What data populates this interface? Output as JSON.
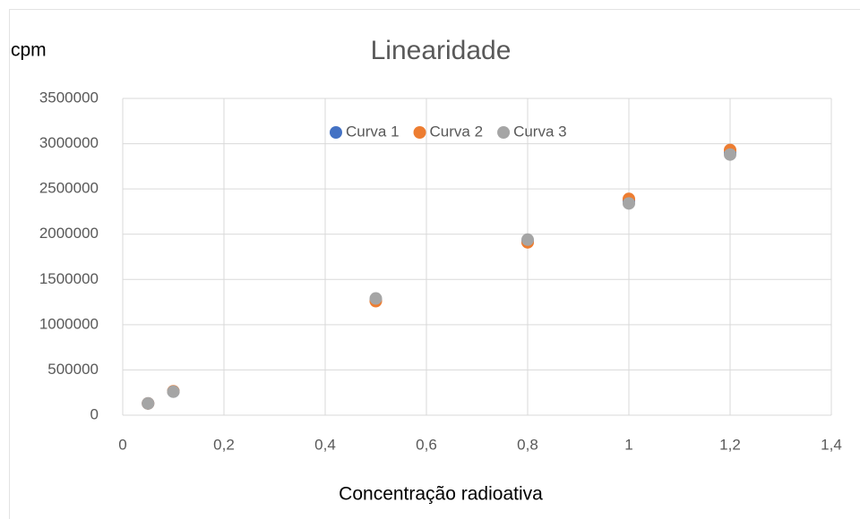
{
  "chart_data": {
    "type": "scatter",
    "title": "Linearidade",
    "ylabel": "cpm",
    "xlabel": "Concentração radioativa",
    "series": [
      {
        "name": "Curva 1",
        "color": "#4472c4",
        "x": [
          0.05,
          0.1,
          0.5,
          0.8,
          1.0,
          1.2
        ],
        "values": [
          130000,
          262000,
          1270000,
          1920000,
          2370000,
          2900000
        ]
      },
      {
        "name": "Curva 2",
        "color": "#ed7d31",
        "x": [
          0.05,
          0.1,
          0.5,
          0.8,
          1.0,
          1.2
        ],
        "values": [
          130000,
          265000,
          1260000,
          1910000,
          2390000,
          2930000
        ]
      },
      {
        "name": "Curva 3",
        "color": "#a5a5a5",
        "x": [
          0.05,
          0.1,
          0.5,
          0.8,
          1.0,
          1.2
        ],
        "values": [
          130000,
          260000,
          1290000,
          1940000,
          2340000,
          2880000
        ]
      }
    ],
    "xlim": [
      0,
      1.4
    ],
    "xticks": [
      0,
      {
        "value": 0.2,
        "label": "0,2"
      },
      {
        "value": 0.4,
        "label": "0,4"
      },
      {
        "value": 0.6,
        "label": "0,6"
      },
      {
        "value": 0.8,
        "label": "0,8"
      },
      1,
      {
        "value": 1.2,
        "label": "1,2"
      },
      {
        "value": 1.4,
        "label": "1,4"
      }
    ],
    "ylim": [
      0,
      3500000
    ],
    "yticks": [
      0,
      500000,
      1000000,
      1500000,
      2000000,
      2500000,
      3000000,
      3500000
    ],
    "grid": true,
    "legend": "top"
  }
}
